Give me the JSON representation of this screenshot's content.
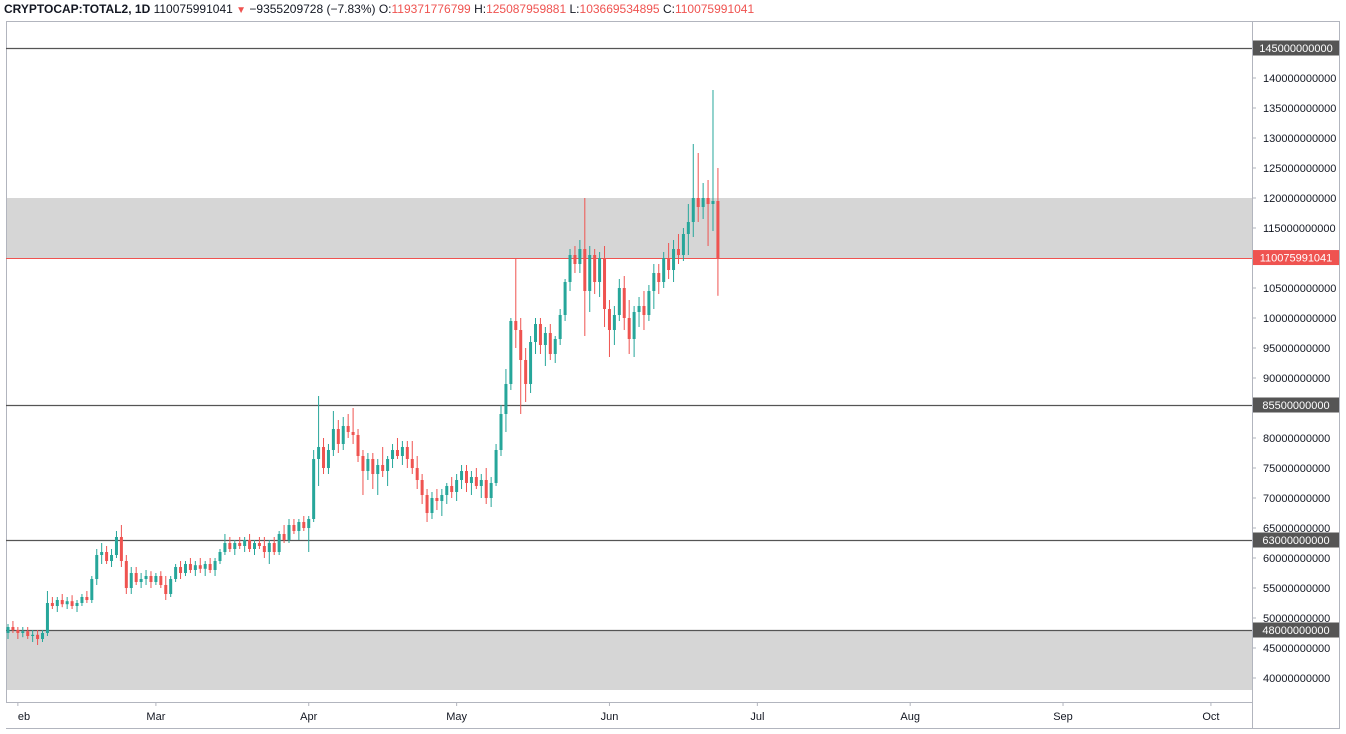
{
  "header": {
    "symbol": "CRYPTOCAP:TOTAL2, 1D",
    "last": "110075991041",
    "change": "−9355209728 (−7.83%)",
    "o_label": "O:",
    "o_value": "119371776799",
    "h_label": "H:",
    "h_value": "125087959881",
    "l_label": "L:",
    "l_value": "103669534895",
    "c_label": "C:",
    "c_value": "110075991041"
  },
  "chart_data": {
    "type": "candlestick",
    "symbol": "CRYPTOCAP:TOTAL2",
    "interval": "1D",
    "ylim": [
      37000000000,
      149000000000
    ],
    "y_ticks": [
      40000000000,
      45000000000,
      50000000000,
      55000000000,
      60000000000,
      65000000000,
      70000000000,
      75000000000,
      80000000000,
      85000000000,
      90000000000,
      95000000000,
      100000000000,
      105000000000,
      110000000000,
      115000000000,
      120000000000,
      125000000000,
      130000000000,
      135000000000,
      140000000000,
      145000000000
    ],
    "y_tick_labels": [
      "40000000000",
      "45000000000",
      "50000000000",
      "55000000000",
      "60000000000",
      "65000000000",
      "70000000000",
      "75000000000",
      "80000000000",
      "85000000000",
      "90000000000",
      "95000000000",
      "100000000000",
      "105000000000",
      "110000000000",
      "115000000000",
      "120000000000",
      "125000000000",
      "130000000000",
      "135000000000",
      "140000000000",
      "145000000000"
    ],
    "x_start_day": 30,
    "x_end_day": 277,
    "x_ticks": [
      {
        "label": "eb",
        "day": 32
      },
      {
        "label": "Mar",
        "day": 60
      },
      {
        "label": "Apr",
        "day": 91
      },
      {
        "label": "May",
        "day": 121
      },
      {
        "label": "Jun",
        "day": 152
      },
      {
        "label": "Jul",
        "day": 182
      },
      {
        "label": "Aug",
        "day": 213
      },
      {
        "label": "Sep",
        "day": 244
      },
      {
        "label": "Oct",
        "day": 274
      }
    ],
    "zones": [
      {
        "from": 110000000000,
        "to": 120000000000,
        "color": "#d6d6d6"
      },
      {
        "from": 38000000000,
        "to": 48000000000,
        "color": "#d6d6d6"
      }
    ],
    "levels": [
      {
        "value": 145000000000,
        "label": "145000000000",
        "color": "#555555"
      },
      {
        "value": 85500000000,
        "label": "85500000000",
        "color": "#555555"
      },
      {
        "value": 63000000000,
        "label": "63000000000",
        "color": "#555555"
      },
      {
        "value": 48000000000,
        "label": "48000000000",
        "color": "#555555"
      }
    ],
    "last_price": {
      "value": 110075991041,
      "label": "110075991041",
      "color": "#ef5350"
    },
    "colors": {
      "up": "#26a69a",
      "down": "#ef5350"
    },
    "candles": [
      {
        "day": 30,
        "o": 47.5,
        "h": 49.0,
        "l": 46.5,
        "c": 48.5
      },
      {
        "day": 31,
        "o": 48.5,
        "h": 49.5,
        "l": 47.5,
        "c": 48.0
      },
      {
        "day": 32,
        "o": 48.0,
        "h": 48.5,
        "l": 46.5,
        "c": 47.5
      },
      {
        "day": 33,
        "o": 47.5,
        "h": 48.5,
        "l": 46.8,
        "c": 47.8
      },
      {
        "day": 34,
        "o": 47.8,
        "h": 48.5,
        "l": 46.5,
        "c": 47.0
      },
      {
        "day": 35,
        "o": 47.0,
        "h": 48.0,
        "l": 46.0,
        "c": 47.2
      },
      {
        "day": 36,
        "o": 47.2,
        "h": 48.0,
        "l": 45.5,
        "c": 46.5
      },
      {
        "day": 37,
        "o": 46.5,
        "h": 48.0,
        "l": 46.0,
        "c": 47.5
      },
      {
        "day": 38,
        "o": 47.5,
        "h": 54.5,
        "l": 47.0,
        "c": 52.5
      },
      {
        "day": 39,
        "o": 52.5,
        "h": 53.5,
        "l": 51.5,
        "c": 52.0
      },
      {
        "day": 40,
        "o": 52.0,
        "h": 53.5,
        "l": 51.0,
        "c": 53.0
      },
      {
        "day": 41,
        "o": 53.0,
        "h": 54.0,
        "l": 51.8,
        "c": 52.3
      },
      {
        "day": 42,
        "o": 52.3,
        "h": 53.5,
        "l": 51.5,
        "c": 52.8
      },
      {
        "day": 43,
        "o": 52.8,
        "h": 53.8,
        "l": 51.5,
        "c": 52.0
      },
      {
        "day": 44,
        "o": 52.0,
        "h": 53.0,
        "l": 51.0,
        "c": 52.5
      },
      {
        "day": 45,
        "o": 52.5,
        "h": 54.0,
        "l": 52.0,
        "c": 53.5
      },
      {
        "day": 46,
        "o": 53.5,
        "h": 54.5,
        "l": 52.5,
        "c": 53.0
      },
      {
        "day": 47,
        "o": 53.0,
        "h": 57.0,
        "l": 52.5,
        "c": 56.5
      },
      {
        "day": 48,
        "o": 56.5,
        "h": 61.5,
        "l": 55.5,
        "c": 60.5
      },
      {
        "day": 49,
        "o": 60.5,
        "h": 62.5,
        "l": 59.0,
        "c": 61.0
      },
      {
        "day": 50,
        "o": 61.0,
        "h": 62.0,
        "l": 59.0,
        "c": 59.5
      },
      {
        "day": 51,
        "o": 59.5,
        "h": 61.5,
        "l": 58.5,
        "c": 60.5
      },
      {
        "day": 52,
        "o": 60.5,
        "h": 64.5,
        "l": 60.0,
        "c": 63.5
      },
      {
        "day": 53,
        "o": 63.5,
        "h": 65.5,
        "l": 58.5,
        "c": 59.5
      },
      {
        "day": 54,
        "o": 59.5,
        "h": 60.5,
        "l": 54.0,
        "c": 55.0
      },
      {
        "day": 55,
        "o": 55.0,
        "h": 58.5,
        "l": 54.0,
        "c": 57.5
      },
      {
        "day": 56,
        "o": 57.5,
        "h": 58.5,
        "l": 55.5,
        "c": 56.0
      },
      {
        "day": 57,
        "o": 56.0,
        "h": 57.5,
        "l": 55.0,
        "c": 56.5
      },
      {
        "day": 58,
        "o": 56.5,
        "h": 58.0,
        "l": 55.5,
        "c": 57.0
      },
      {
        "day": 59,
        "o": 57.0,
        "h": 57.8,
        "l": 55.0,
        "c": 56.0
      },
      {
        "day": 60,
        "o": 56.0,
        "h": 57.5,
        "l": 55.5,
        "c": 57.0
      },
      {
        "day": 61,
        "o": 57.0,
        "h": 57.8,
        "l": 55.0,
        "c": 55.5
      },
      {
        "day": 62,
        "o": 55.5,
        "h": 57.0,
        "l": 53.0,
        "c": 54.0
      },
      {
        "day": 63,
        "o": 54.0,
        "h": 57.0,
        "l": 53.5,
        "c": 56.5
      },
      {
        "day": 64,
        "o": 56.5,
        "h": 59.0,
        "l": 56.0,
        "c": 58.5
      },
      {
        "day": 65,
        "o": 58.5,
        "h": 59.5,
        "l": 56.5,
        "c": 57.5
      },
      {
        "day": 66,
        "o": 57.5,
        "h": 59.5,
        "l": 57.0,
        "c": 59.0
      },
      {
        "day": 67,
        "o": 59.0,
        "h": 60.0,
        "l": 57.5,
        "c": 58.0
      },
      {
        "day": 68,
        "o": 58.0,
        "h": 59.5,
        "l": 57.0,
        "c": 58.8
      },
      {
        "day": 69,
        "o": 58.8,
        "h": 60.0,
        "l": 57.5,
        "c": 58.2
      },
      {
        "day": 70,
        "o": 58.2,
        "h": 59.5,
        "l": 57.0,
        "c": 59.0
      },
      {
        "day": 71,
        "o": 59.0,
        "h": 60.0,
        "l": 57.5,
        "c": 58.0
      },
      {
        "day": 72,
        "o": 58.0,
        "h": 60.0,
        "l": 57.0,
        "c": 59.5
      },
      {
        "day": 73,
        "o": 59.5,
        "h": 61.5,
        "l": 59.0,
        "c": 61.0
      },
      {
        "day": 74,
        "o": 61.0,
        "h": 64.0,
        "l": 60.5,
        "c": 62.5
      },
      {
        "day": 75,
        "o": 62.5,
        "h": 63.5,
        "l": 61.0,
        "c": 61.5
      },
      {
        "day": 76,
        "o": 61.5,
        "h": 63.0,
        "l": 60.5,
        "c": 62.5
      },
      {
        "day": 77,
        "o": 62.5,
        "h": 63.5,
        "l": 61.5,
        "c": 62.0
      },
      {
        "day": 78,
        "o": 62.0,
        "h": 63.5,
        "l": 61.0,
        "c": 63.0
      },
      {
        "day": 79,
        "o": 63.0,
        "h": 64.0,
        "l": 61.0,
        "c": 61.5
      },
      {
        "day": 80,
        "o": 61.5,
        "h": 63.0,
        "l": 60.5,
        "c": 62.5
      },
      {
        "day": 81,
        "o": 62.5,
        "h": 63.5,
        "l": 61.5,
        "c": 62.0
      },
      {
        "day": 82,
        "o": 62.0,
        "h": 63.5,
        "l": 60.0,
        "c": 61.0
      },
      {
        "day": 83,
        "o": 61.0,
        "h": 63.0,
        "l": 59.0,
        "c": 62.5
      },
      {
        "day": 84,
        "o": 62.5,
        "h": 63.5,
        "l": 60.5,
        "c": 61.0
      },
      {
        "day": 85,
        "o": 61.0,
        "h": 64.5,
        "l": 60.5,
        "c": 64.0
      },
      {
        "day": 86,
        "o": 64.0,
        "h": 65.5,
        "l": 62.5,
        "c": 63.0
      },
      {
        "day": 87,
        "o": 63.0,
        "h": 66.5,
        "l": 62.5,
        "c": 65.5
      },
      {
        "day": 88,
        "o": 65.5,
        "h": 66.5,
        "l": 64.0,
        "c": 64.5
      },
      {
        "day": 89,
        "o": 64.5,
        "h": 66.5,
        "l": 63.0,
        "c": 66.0
      },
      {
        "day": 90,
        "o": 66.0,
        "h": 67.0,
        "l": 64.5,
        "c": 65.0
      },
      {
        "day": 91,
        "o": 65.0,
        "h": 67.0,
        "l": 61.0,
        "c": 66.5
      },
      {
        "day": 92,
        "o": 66.5,
        "h": 78.0,
        "l": 66.0,
        "c": 76.5
      },
      {
        "day": 93,
        "o": 76.5,
        "h": 87.0,
        "l": 72.0,
        "c": 78.5
      },
      {
        "day": 94,
        "o": 78.5,
        "h": 80.0,
        "l": 74.0,
        "c": 75.0
      },
      {
        "day": 95,
        "o": 75.0,
        "h": 79.0,
        "l": 74.0,
        "c": 78.0
      },
      {
        "day": 96,
        "o": 78.0,
        "h": 84.5,
        "l": 77.0,
        "c": 81.5
      },
      {
        "day": 97,
        "o": 81.5,
        "h": 83.0,
        "l": 77.5,
        "c": 79.0
      },
      {
        "day": 98,
        "o": 79.0,
        "h": 83.5,
        "l": 78.0,
        "c": 82.0
      },
      {
        "day": 99,
        "o": 82.0,
        "h": 84.0,
        "l": 80.0,
        "c": 81.0
      },
      {
        "day": 100,
        "o": 81.0,
        "h": 85.0,
        "l": 79.0,
        "c": 80.5
      },
      {
        "day": 101,
        "o": 80.5,
        "h": 81.5,
        "l": 76.0,
        "c": 77.0
      },
      {
        "day": 102,
        "o": 77.0,
        "h": 78.0,
        "l": 70.5,
        "c": 74.5
      },
      {
        "day": 103,
        "o": 74.5,
        "h": 77.5,
        "l": 73.0,
        "c": 76.5
      },
      {
        "day": 104,
        "o": 76.5,
        "h": 77.5,
        "l": 71.5,
        "c": 74.0
      },
      {
        "day": 105,
        "o": 74.0,
        "h": 76.5,
        "l": 70.5,
        "c": 75.5
      },
      {
        "day": 106,
        "o": 75.5,
        "h": 78.5,
        "l": 73.5,
        "c": 74.5
      },
      {
        "day": 107,
        "o": 74.5,
        "h": 77.0,
        "l": 72.0,
        "c": 76.5
      },
      {
        "day": 108,
        "o": 76.5,
        "h": 79.0,
        "l": 75.0,
        "c": 78.0
      },
      {
        "day": 109,
        "o": 78.0,
        "h": 80.0,
        "l": 76.5,
        "c": 77.0
      },
      {
        "day": 110,
        "o": 77.0,
        "h": 79.5,
        "l": 75.5,
        "c": 78.5
      },
      {
        "day": 111,
        "o": 78.5,
        "h": 79.5,
        "l": 75.0,
        "c": 76.5
      },
      {
        "day": 112,
        "o": 76.5,
        "h": 79.5,
        "l": 74.0,
        "c": 75.0
      },
      {
        "day": 113,
        "o": 75.0,
        "h": 77.0,
        "l": 71.5,
        "c": 73.0
      },
      {
        "day": 114,
        "o": 73.0,
        "h": 74.0,
        "l": 69.0,
        "c": 70.5
      },
      {
        "day": 115,
        "o": 70.5,
        "h": 71.5,
        "l": 66.0,
        "c": 67.5
      },
      {
        "day": 116,
        "o": 67.5,
        "h": 71.0,
        "l": 66.5,
        "c": 70.0
      },
      {
        "day": 117,
        "o": 70.0,
        "h": 71.5,
        "l": 68.0,
        "c": 69.5
      },
      {
        "day": 118,
        "o": 69.5,
        "h": 71.5,
        "l": 67.0,
        "c": 70.5
      },
      {
        "day": 119,
        "o": 70.5,
        "h": 72.5,
        "l": 69.0,
        "c": 72.0
      },
      {
        "day": 120,
        "o": 72.0,
        "h": 73.5,
        "l": 70.0,
        "c": 71.0
      },
      {
        "day": 121,
        "o": 71.0,
        "h": 74.0,
        "l": 69.5,
        "c": 73.0
      },
      {
        "day": 122,
        "o": 73.0,
        "h": 75.5,
        "l": 71.5,
        "c": 74.5
      },
      {
        "day": 123,
        "o": 74.5,
        "h": 75.5,
        "l": 71.0,
        "c": 72.5
      },
      {
        "day": 124,
        "o": 72.5,
        "h": 74.5,
        "l": 70.5,
        "c": 73.5
      },
      {
        "day": 125,
        "o": 73.5,
        "h": 75.0,
        "l": 71.5,
        "c": 72.0
      },
      {
        "day": 126,
        "o": 72.0,
        "h": 74.0,
        "l": 70.0,
        "c": 73.0
      },
      {
        "day": 127,
        "o": 73.0,
        "h": 75.0,
        "l": 69.0,
        "c": 70.0
      },
      {
        "day": 128,
        "o": 70.0,
        "h": 73.5,
        "l": 68.5,
        "c": 72.5
      },
      {
        "day": 129,
        "o": 72.5,
        "h": 79.0,
        "l": 72.0,
        "c": 78.0
      },
      {
        "day": 130,
        "o": 78.0,
        "h": 85.5,
        "l": 77.0,
        "c": 84.0
      },
      {
        "day": 131,
        "o": 84.0,
        "h": 91.5,
        "l": 81.0,
        "c": 89.0
      },
      {
        "day": 132,
        "o": 89.0,
        "h": 100.0,
        "l": 88.0,
        "c": 99.5
      },
      {
        "day": 133,
        "o": 99.5,
        "h": 110.0,
        "l": 95.0,
        "c": 98.0
      },
      {
        "day": 134,
        "o": 98.0,
        "h": 100.0,
        "l": 84.0,
        "c": 93.0
      },
      {
        "day": 135,
        "o": 93.0,
        "h": 95.0,
        "l": 86.0,
        "c": 89.0
      },
      {
        "day": 136,
        "o": 89.0,
        "h": 97.0,
        "l": 87.5,
        "c": 96.0
      },
      {
        "day": 137,
        "o": 96.0,
        "h": 100.0,
        "l": 94.0,
        "c": 99.0
      },
      {
        "day": 138,
        "o": 99.0,
        "h": 100.0,
        "l": 94.0,
        "c": 95.5
      },
      {
        "day": 139,
        "o": 95.5,
        "h": 98.5,
        "l": 92.0,
        "c": 97.5
      },
      {
        "day": 140,
        "o": 97.5,
        "h": 99.0,
        "l": 93.0,
        "c": 94.0
      },
      {
        "day": 141,
        "o": 94.0,
        "h": 97.0,
        "l": 92.5,
        "c": 96.5
      },
      {
        "day": 142,
        "o": 96.5,
        "h": 101.5,
        "l": 95.5,
        "c": 100.5
      },
      {
        "day": 143,
        "o": 100.5,
        "h": 106.5,
        "l": 99.5,
        "c": 106.0
      },
      {
        "day": 144,
        "o": 106.0,
        "h": 111.5,
        "l": 104.5,
        "c": 110.5
      },
      {
        "day": 145,
        "o": 110.5,
        "h": 112.0,
        "l": 107.5,
        "c": 109.0
      },
      {
        "day": 146,
        "o": 109.0,
        "h": 113.0,
        "l": 107.5,
        "c": 111.5
      },
      {
        "day": 147,
        "o": 111.5,
        "h": 120.0,
        "l": 97.0,
        "c": 104.5
      },
      {
        "day": 148,
        "o": 104.5,
        "h": 112.0,
        "l": 101.0,
        "c": 110.5
      },
      {
        "day": 149,
        "o": 110.5,
        "h": 111.5,
        "l": 104.0,
        "c": 106.0
      },
      {
        "day": 150,
        "o": 106.0,
        "h": 111.0,
        "l": 103.5,
        "c": 110.0
      },
      {
        "day": 151,
        "o": 110.0,
        "h": 112.0,
        "l": 98.5,
        "c": 101.5
      },
      {
        "day": 152,
        "o": 101.5,
        "h": 103.0,
        "l": 93.5,
        "c": 98.0
      },
      {
        "day": 153,
        "o": 98.0,
        "h": 102.0,
        "l": 95.5,
        "c": 100.5
      },
      {
        "day": 154,
        "o": 100.5,
        "h": 106.5,
        "l": 99.5,
        "c": 105.0
      },
      {
        "day": 155,
        "o": 105.0,
        "h": 107.0,
        "l": 98.0,
        "c": 100.0
      },
      {
        "day": 156,
        "o": 100.0,
        "h": 103.0,
        "l": 94.0,
        "c": 96.5
      },
      {
        "day": 157,
        "o": 96.5,
        "h": 102.0,
        "l": 93.5,
        "c": 101.0
      },
      {
        "day": 158,
        "o": 101.0,
        "h": 103.5,
        "l": 98.5,
        "c": 102.0
      },
      {
        "day": 159,
        "o": 102.0,
        "h": 104.5,
        "l": 98.0,
        "c": 100.5
      },
      {
        "day": 160,
        "o": 100.5,
        "h": 105.5,
        "l": 99.5,
        "c": 104.5
      },
      {
        "day": 161,
        "o": 104.5,
        "h": 109.0,
        "l": 101.5,
        "c": 107.5
      },
      {
        "day": 162,
        "o": 107.5,
        "h": 109.0,
        "l": 104.0,
        "c": 106.0
      },
      {
        "day": 163,
        "o": 106.0,
        "h": 111.0,
        "l": 105.0,
        "c": 110.0
      },
      {
        "day": 164,
        "o": 110.0,
        "h": 112.5,
        "l": 106.5,
        "c": 108.0
      },
      {
        "day": 165,
        "o": 108.0,
        "h": 113.0,
        "l": 106.0,
        "c": 111.5
      },
      {
        "day": 166,
        "o": 111.5,
        "h": 114.0,
        "l": 109.0,
        "c": 110.5
      },
      {
        "day": 167,
        "o": 110.5,
        "h": 115.0,
        "l": 109.5,
        "c": 114.0
      },
      {
        "day": 168,
        "o": 114.0,
        "h": 119.0,
        "l": 110.5,
        "c": 116.0
      },
      {
        "day": 169,
        "o": 116.0,
        "h": 129.0,
        "l": 113.5,
        "c": 120.0
      },
      {
        "day": 170,
        "o": 120.0,
        "h": 127.5,
        "l": 116.0,
        "c": 118.5
      },
      {
        "day": 171,
        "o": 118.5,
        "h": 122.5,
        "l": 116.5,
        "c": 120.0
      },
      {
        "day": 172,
        "o": 120.0,
        "h": 123.0,
        "l": 112.0,
        "c": 119.0
      },
      {
        "day": 173,
        "o": 119.0,
        "h": 138.0,
        "l": 114.5,
        "c": 119.5
      },
      {
        "day": 174,
        "o": 119.5,
        "h": 125.0,
        "l": 103.7,
        "c": 110.0
      }
    ]
  }
}
